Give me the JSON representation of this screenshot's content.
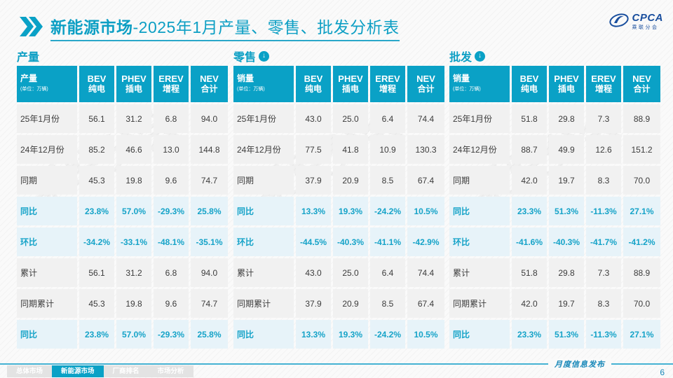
{
  "slide": {
    "title_bold": "新能源市场",
    "title_rest": "-2025年1月产量、零售、批发分析表",
    "footer_note": "月度信息发布",
    "page_number": "6",
    "watermark": "乘联分会"
  },
  "logo": {
    "name": "CPCA",
    "sub": "乘联分会"
  },
  "colors": {
    "accent": "#0aa1c6",
    "pct_bg": "#e7f3f9",
    "row_bg": "#f1f1f1",
    "logo_blue": "#1a4f9e"
  },
  "tables": [
    {
      "section": "产量",
      "has_arrow": false,
      "corner_label": "产量",
      "corner_unit": "(单位：万辆)",
      "columns": [
        {
          "en": "BEV",
          "zh": "纯电"
        },
        {
          "en": "PHEV",
          "zh": "插电"
        },
        {
          "en": "EREV",
          "zh": "增程"
        },
        {
          "en": "NEV",
          "zh": "合计"
        }
      ],
      "rows": [
        {
          "label": "25年1月份",
          "pct": false,
          "values": [
            "56.1",
            "31.2",
            "6.8",
            "94.0"
          ]
        },
        {
          "label": "24年12月份",
          "pct": false,
          "values": [
            "85.2",
            "46.6",
            "13.0",
            "144.8"
          ]
        },
        {
          "label": "同期",
          "pct": false,
          "values": [
            "45.3",
            "19.8",
            "9.6",
            "74.7"
          ]
        },
        {
          "label": "同比",
          "pct": true,
          "values": [
            "23.8%",
            "57.0%",
            "-29.3%",
            "25.8%"
          ]
        },
        {
          "label": "环比",
          "pct": true,
          "values": [
            "-34.2%",
            "-33.1%",
            "-48.1%",
            "-35.1%"
          ]
        },
        {
          "label": "累计",
          "pct": false,
          "values": [
            "56.1",
            "31.2",
            "6.8",
            "94.0"
          ]
        },
        {
          "label": "同期累计",
          "pct": false,
          "values": [
            "45.3",
            "19.8",
            "9.6",
            "74.7"
          ]
        },
        {
          "label": "同比",
          "pct": true,
          "values": [
            "23.8%",
            "57.0%",
            "-29.3%",
            "25.8%"
          ]
        }
      ]
    },
    {
      "section": "零售",
      "has_arrow": true,
      "corner_label": "销量",
      "corner_unit": "(单位：万辆)",
      "columns": [
        {
          "en": "BEV",
          "zh": "纯电"
        },
        {
          "en": "PHEV",
          "zh": "插电"
        },
        {
          "en": "EREV",
          "zh": "增程"
        },
        {
          "en": "NEV",
          "zh": "合计"
        }
      ],
      "rows": [
        {
          "label": "25年1月份",
          "pct": false,
          "values": [
            "43.0",
            "25.0",
            "6.4",
            "74.4"
          ]
        },
        {
          "label": "24年12月份",
          "pct": false,
          "values": [
            "77.5",
            "41.8",
            "10.9",
            "130.3"
          ]
        },
        {
          "label": "同期",
          "pct": false,
          "values": [
            "37.9",
            "20.9",
            "8.5",
            "67.4"
          ]
        },
        {
          "label": "同比",
          "pct": true,
          "values": [
            "13.3%",
            "19.3%",
            "-24.2%",
            "10.5%"
          ]
        },
        {
          "label": "环比",
          "pct": true,
          "values": [
            "-44.5%",
            "-40.3%",
            "-41.1%",
            "-42.9%"
          ]
        },
        {
          "label": "累计",
          "pct": false,
          "values": [
            "43.0",
            "25.0",
            "6.4",
            "74.4"
          ]
        },
        {
          "label": "同期累计",
          "pct": false,
          "values": [
            "37.9",
            "20.9",
            "8.5",
            "67.4"
          ]
        },
        {
          "label": "同比",
          "pct": true,
          "values": [
            "13.3%",
            "19.3%",
            "-24.2%",
            "10.5%"
          ]
        }
      ]
    },
    {
      "section": "批发",
      "has_arrow": true,
      "corner_label": "销量",
      "corner_unit": "(单位：万辆)",
      "columns": [
        {
          "en": "BEV",
          "zh": "纯电"
        },
        {
          "en": "PHEV",
          "zh": "插电"
        },
        {
          "en": "EREV",
          "zh": "增程"
        },
        {
          "en": "NEV",
          "zh": "合计"
        }
      ],
      "rows": [
        {
          "label": "25年1月份",
          "pct": false,
          "values": [
            "51.8",
            "29.8",
            "7.3",
            "88.9"
          ]
        },
        {
          "label": "24年12月份",
          "pct": false,
          "values": [
            "88.7",
            "49.9",
            "12.6",
            "151.2"
          ]
        },
        {
          "label": "同期",
          "pct": false,
          "values": [
            "42.0",
            "19.7",
            "8.3",
            "70.0"
          ]
        },
        {
          "label": "同比",
          "pct": true,
          "values": [
            "23.3%",
            "51.3%",
            "-11.3%",
            "27.1%"
          ]
        },
        {
          "label": "环比",
          "pct": true,
          "values": [
            "-41.6%",
            "-40.3%",
            "-41.7%",
            "-41.2%"
          ]
        },
        {
          "label": "累计",
          "pct": false,
          "values": [
            "51.8",
            "29.8",
            "7.3",
            "88.9"
          ]
        },
        {
          "label": "同期累计",
          "pct": false,
          "values": [
            "42.0",
            "19.7",
            "8.3",
            "70.0"
          ]
        },
        {
          "label": "同比",
          "pct": true,
          "values": [
            "23.3%",
            "51.3%",
            "-11.3%",
            "27.1%"
          ]
        }
      ]
    }
  ],
  "nav_tabs": [
    {
      "label": "总体市场",
      "active": false
    },
    {
      "label": "新能源市场",
      "active": true
    },
    {
      "label": "厂商排名",
      "active": false
    },
    {
      "label": "市场分析",
      "active": false
    }
  ]
}
